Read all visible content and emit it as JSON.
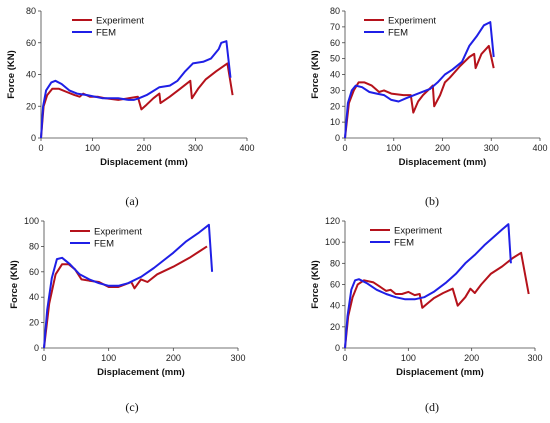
{
  "chart_data": [
    {
      "type": "line",
      "panel_label": "(a)",
      "xlabel": "Displacement (mm)",
      "ylabel": "Force (KN)",
      "xlim": [
        0,
        400
      ],
      "ylim": [
        0,
        80
      ],
      "xticks": [
        "0",
        "100",
        "200",
        "300",
        "400"
      ],
      "yticks": [
        "0",
        "20",
        "40",
        "60",
        "80"
      ],
      "legend_position": "top-left",
      "grid": false,
      "series": [
        {
          "name": "Experiment",
          "color": "#b5121b",
          "points": [
            [
              0,
              0
            ],
            [
              5,
              20
            ],
            [
              12,
              27
            ],
            [
              22,
              31
            ],
            [
              35,
              31
            ],
            [
              50,
              29
            ],
            [
              65,
              27
            ],
            [
              75,
              26
            ],
            [
              82,
              28
            ],
            [
              95,
              26
            ],
            [
              110,
              26
            ],
            [
              125,
              25
            ],
            [
              150,
              24
            ],
            [
              170,
              25
            ],
            [
              188,
              26
            ],
            [
              195,
              18
            ],
            [
              205,
              21
            ],
            [
              218,
              25
            ],
            [
              230,
              28
            ],
            [
              232,
              22
            ],
            [
              250,
              26
            ],
            [
              270,
              31
            ],
            [
              290,
              36
            ],
            [
              293,
              25
            ],
            [
              305,
              31
            ],
            [
              320,
              37
            ],
            [
              340,
              42
            ],
            [
              362,
              47
            ],
            [
              372,
              27
            ]
          ]
        },
        {
          "name": "FEM",
          "color": "#1f1fe6",
          "points": [
            [
              0,
              0
            ],
            [
              4,
              20
            ],
            [
              10,
              30
            ],
            [
              20,
              35
            ],
            [
              28,
              36
            ],
            [
              40,
              34
            ],
            [
              55,
              30
            ],
            [
              70,
              28
            ],
            [
              90,
              27
            ],
            [
              120,
              25
            ],
            [
              150,
              25
            ],
            [
              170,
              24
            ],
            [
              180,
              24
            ],
            [
              190,
              25
            ],
            [
              205,
              27
            ],
            [
              215,
              29
            ],
            [
              230,
              32
            ],
            [
              250,
              33
            ],
            [
              265,
              36
            ],
            [
              280,
              42
            ],
            [
              295,
              47
            ],
            [
              315,
              48
            ],
            [
              330,
              50
            ],
            [
              345,
              56
            ],
            [
              350,
              60
            ],
            [
              360,
              61
            ],
            [
              368,
              38
            ]
          ]
        }
      ]
    },
    {
      "type": "line",
      "panel_label": "(b)",
      "xlabel": "Displacement (mm)",
      "ylabel": "Force (KN)",
      "xlim": [
        0,
        400
      ],
      "ylim": [
        0,
        80
      ],
      "xticks": [
        "0",
        "100",
        "200",
        "300",
        "400"
      ],
      "yticks": [
        "0",
        "10",
        "20",
        "30",
        "40",
        "50",
        "60",
        "70",
        "80"
      ],
      "legend_position": "top-left",
      "grid": false,
      "series": [
        {
          "name": "Experiment",
          "color": "#b5121b",
          "points": [
            [
              0,
              0
            ],
            [
              8,
              22
            ],
            [
              18,
              30
            ],
            [
              28,
              35
            ],
            [
              40,
              35
            ],
            [
              55,
              33
            ],
            [
              70,
              29
            ],
            [
              80,
              30
            ],
            [
              95,
              28
            ],
            [
              120,
              27
            ],
            [
              135,
              27
            ],
            [
              140,
              16
            ],
            [
              150,
              23
            ],
            [
              160,
              27
            ],
            [
              170,
              30
            ],
            [
              180,
              33
            ],
            [
              183,
              20
            ],
            [
              195,
              27
            ],
            [
              205,
              35
            ],
            [
              215,
              38
            ],
            [
              235,
              45
            ],
            [
              255,
              51
            ],
            [
              265,
              53
            ],
            [
              268,
              44
            ],
            [
              280,
              53
            ],
            [
              295,
              58
            ],
            [
              305,
              44
            ]
          ]
        },
        {
          "name": "FEM",
          "color": "#1f1fe6",
          "points": [
            [
              0,
              0
            ],
            [
              6,
              22
            ],
            [
              14,
              30
            ],
            [
              22,
              33
            ],
            [
              35,
              32
            ],
            [
              50,
              29
            ],
            [
              65,
              28
            ],
            [
              80,
              27
            ],
            [
              95,
              24
            ],
            [
              110,
              23
            ],
            [
              125,
              25
            ],
            [
              150,
              28
            ],
            [
              175,
              31
            ],
            [
              190,
              35
            ],
            [
              205,
              40
            ],
            [
              220,
              43
            ],
            [
              240,
              48
            ],
            [
              255,
              58
            ],
            [
              270,
              64
            ],
            [
              285,
              71
            ],
            [
              298,
              73
            ],
            [
              305,
              51
            ]
          ]
        }
      ]
    },
    {
      "type": "line",
      "panel_label": "(c)",
      "xlabel": "Displacement (mm)",
      "ylabel": "Force (KN)",
      "xlim": [
        0,
        300
      ],
      "ylim": [
        0,
        100
      ],
      "xticks": [
        "0",
        "100",
        "200",
        "300"
      ],
      "yticks": [
        "0",
        "20",
        "40",
        "60",
        "80",
        "100"
      ],
      "legend_position": "top-left",
      "grid": false,
      "series": [
        {
          "name": "Experiment",
          "color": "#b5121b",
          "points": [
            [
              0,
              0
            ],
            [
              8,
              35
            ],
            [
              18,
              58
            ],
            [
              28,
              66
            ],
            [
              38,
              66
            ],
            [
              48,
              62
            ],
            [
              58,
              54
            ],
            [
              70,
              53
            ],
            [
              85,
              52
            ],
            [
              100,
              48
            ],
            [
              115,
              48
            ],
            [
              135,
              52
            ],
            [
              140,
              47
            ],
            [
              150,
              54
            ],
            [
              160,
              52
            ],
            [
              175,
              58
            ],
            [
              200,
              64
            ],
            [
              225,
              71
            ],
            [
              240,
              76
            ],
            [
              252,
              80
            ]
          ]
        },
        {
          "name": "FEM",
          "color": "#1f1fe6",
          "points": [
            [
              0,
              0
            ],
            [
              5,
              30
            ],
            [
              12,
              55
            ],
            [
              20,
              70
            ],
            [
              28,
              71
            ],
            [
              40,
              66
            ],
            [
              55,
              58
            ],
            [
              70,
              54
            ],
            [
              85,
              51
            ],
            [
              100,
              49
            ],
            [
              115,
              49
            ],
            [
              130,
              51
            ],
            [
              150,
              56
            ],
            [
              170,
              63
            ],
            [
              185,
              69
            ],
            [
              200,
              75
            ],
            [
              220,
              84
            ],
            [
              240,
              91
            ],
            [
              255,
              97
            ],
            [
              260,
              60
            ]
          ]
        }
      ]
    },
    {
      "type": "line",
      "panel_label": "(d)",
      "xlabel": "Displacement (mm)",
      "ylabel": "Force (KN)",
      "xlim": [
        0,
        300
      ],
      "ylim": [
        0,
        120
      ],
      "xticks": [
        "0",
        "100",
        "200",
        "300"
      ],
      "yticks": [
        "0",
        "20",
        "40",
        "60",
        "80",
        "100",
        "120"
      ],
      "legend_position": "top-left",
      "grid": false,
      "series": [
        {
          "name": "Experiment",
          "color": "#b5121b",
          "points": [
            [
              0,
              0
            ],
            [
              5,
              30
            ],
            [
              12,
              48
            ],
            [
              20,
              60
            ],
            [
              30,
              64
            ],
            [
              45,
              62
            ],
            [
              55,
              58
            ],
            [
              65,
              54
            ],
            [
              72,
              55
            ],
            [
              80,
              51
            ],
            [
              90,
              51
            ],
            [
              100,
              53
            ],
            [
              110,
              50
            ],
            [
              118,
              51
            ],
            [
              122,
              38
            ],
            [
              132,
              43
            ],
            [
              140,
              47
            ],
            [
              155,
              52
            ],
            [
              170,
              56
            ],
            [
              178,
              40
            ],
            [
              190,
              48
            ],
            [
              198,
              56
            ],
            [
              205,
              52
            ],
            [
              215,
              60
            ],
            [
              230,
              70
            ],
            [
              248,
              77
            ],
            [
              265,
              85
            ],
            [
              278,
              90
            ],
            [
              290,
              51
            ]
          ]
        },
        {
          "name": "FEM",
          "color": "#1f1fe6",
          "points": [
            [
              0,
              0
            ],
            [
              4,
              30
            ],
            [
              10,
              55
            ],
            [
              16,
              64
            ],
            [
              22,
              65
            ],
            [
              35,
              61
            ],
            [
              50,
              55
            ],
            [
              65,
              51
            ],
            [
              80,
              48
            ],
            [
              95,
              46
            ],
            [
              110,
              46
            ],
            [
              125,
              48
            ],
            [
              140,
              53
            ],
            [
              160,
              62
            ],
            [
              175,
              70
            ],
            [
              190,
              80
            ],
            [
              205,
              88
            ],
            [
              220,
              97
            ],
            [
              235,
              105
            ],
            [
              248,
              112
            ],
            [
              258,
              117
            ],
            [
              262,
              80
            ]
          ]
        }
      ]
    }
  ]
}
